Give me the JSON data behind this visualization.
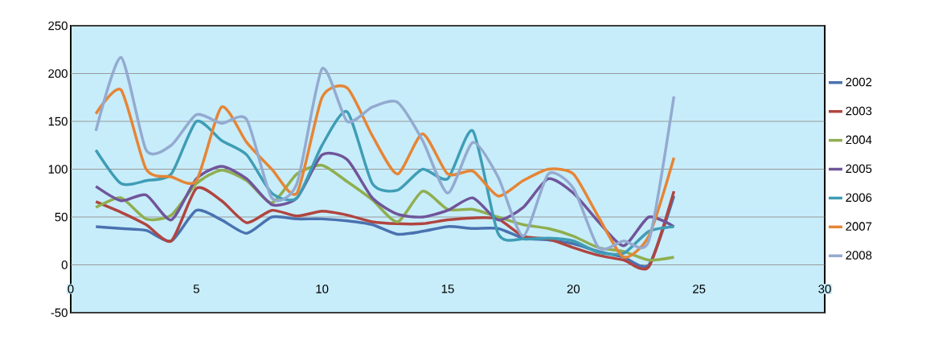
{
  "chart_data": {
    "type": "line",
    "x": [
      1,
      2,
      3,
      4,
      5,
      6,
      7,
      8,
      9,
      10,
      11,
      12,
      13,
      14,
      15,
      16,
      17,
      18,
      19,
      20,
      21,
      22,
      23,
      24
    ],
    "series": [
      {
        "name": "2002",
        "color": "#4a72b0",
        "values": [
          40,
          38,
          36,
          25,
          57,
          47,
          33,
          50,
          48,
          48,
          46,
          42,
          32,
          35,
          40,
          38,
          38,
          28,
          26,
          22,
          14,
          8,
          0,
          72
        ]
      },
      {
        "name": "2003",
        "color": "#b04540",
        "values": [
          66,
          55,
          42,
          25,
          80,
          67,
          44,
          57,
          51,
          56,
          52,
          45,
          43,
          43,
          47,
          49,
          48,
          30,
          27,
          18,
          10,
          5,
          -2,
          77
        ]
      },
      {
        "name": "2004",
        "color": "#8fae4f",
        "values": [
          60,
          70,
          48,
          52,
          85,
          99,
          88,
          65,
          95,
          104,
          87,
          68,
          45,
          77,
          58,
          58,
          50,
          42,
          38,
          30,
          18,
          14,
          5,
          8
        ]
      },
      {
        "name": "2005",
        "color": "#70559a",
        "values": [
          82,
          67,
          73,
          47,
          90,
          103,
          90,
          63,
          70,
          115,
          110,
          70,
          53,
          50,
          57,
          70,
          47,
          60,
          90,
          75,
          45,
          20,
          50,
          40
        ]
      },
      {
        "name": "2006",
        "color": "#3f9db5",
        "values": [
          120,
          85,
          88,
          95,
          150,
          130,
          115,
          75,
          70,
          125,
          160,
          85,
          78,
          100,
          90,
          140,
          33,
          27,
          28,
          25,
          13,
          12,
          35,
          40
        ]
      },
      {
        "name": "2007",
        "color": "#e68535",
        "values": [
          158,
          183,
          100,
          92,
          88,
          165,
          128,
          100,
          75,
          175,
          185,
          135,
          95,
          137,
          95,
          98,
          72,
          88,
          100,
          95,
          50,
          8,
          30,
          112
        ]
      },
      {
        "name": "2008",
        "color": "#94aad0",
        "values": [
          140,
          217,
          120,
          125,
          157,
          148,
          152,
          70,
          85,
          205,
          150,
          165,
          170,
          130,
          75,
          128,
          92,
          30,
          95,
          80,
          18,
          25,
          25,
          176
        ]
      }
    ],
    "xlim": [
      0,
      30
    ],
    "ylim": [
      -50,
      250
    ],
    "xticks": [
      0,
      5,
      10,
      15,
      20,
      25,
      30
    ],
    "yticks": [
      -50,
      0,
      50,
      100,
      150,
      200,
      250
    ],
    "grid": "y",
    "legend": "right",
    "marker": "none",
    "line_style": "solid"
  }
}
